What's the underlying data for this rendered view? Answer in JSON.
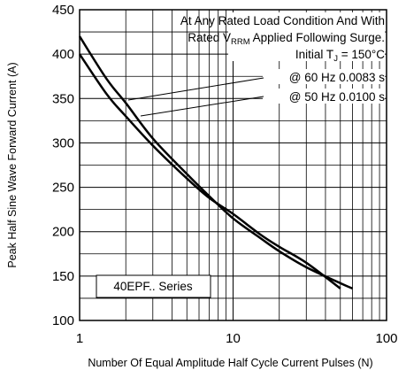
{
  "chart_data": {
    "type": "line",
    "xscale": "log",
    "xlim": [
      1,
      100
    ],
    "ylim": [
      100,
      450
    ],
    "xlabel": "Number Of Equal Amplitude Half Cycle Current Pulses (N)",
    "ylabel": "Peak Half Sine Wave Forward Current (A)",
    "x_ticks": [
      "1",
      "10",
      "100"
    ],
    "y_ticks": [
      "100",
      "150",
      "200",
      "250",
      "300",
      "350",
      "400",
      "450"
    ],
    "grid": true,
    "annotations": {
      "line1": "At Any Rated Load Condition And With",
      "line2_a": "Rated V",
      "line2_sub": "RRM",
      "line2_b": " Applied Following Surge.",
      "line3_a": "Initial T",
      "line3_sub": "J",
      "line3_b": " = 150°C",
      "label_60hz": "@ 60 Hz 0.0083 s",
      "label_50hz": "@ 50 Hz 0.0100 s",
      "series_box": "40EPF.. Series"
    },
    "series": [
      {
        "name": "@ 60 Hz 0.0083 s",
        "x": [
          1,
          1.5,
          2,
          3,
          5,
          7,
          10,
          15,
          20,
          30,
          50,
          60
        ],
        "y": [
          420,
          372,
          345,
          305,
          265,
          240,
          215,
          193,
          178,
          160,
          142,
          136
        ]
      },
      {
        "name": "@ 50 Hz 0.0100 s",
        "x": [
          1,
          1.5,
          2,
          3,
          5,
          7,
          10,
          15,
          20,
          30,
          50
        ],
        "y": [
          400,
          355,
          330,
          297,
          260,
          238,
          220,
          197,
          183,
          165,
          136
        ]
      }
    ]
  }
}
